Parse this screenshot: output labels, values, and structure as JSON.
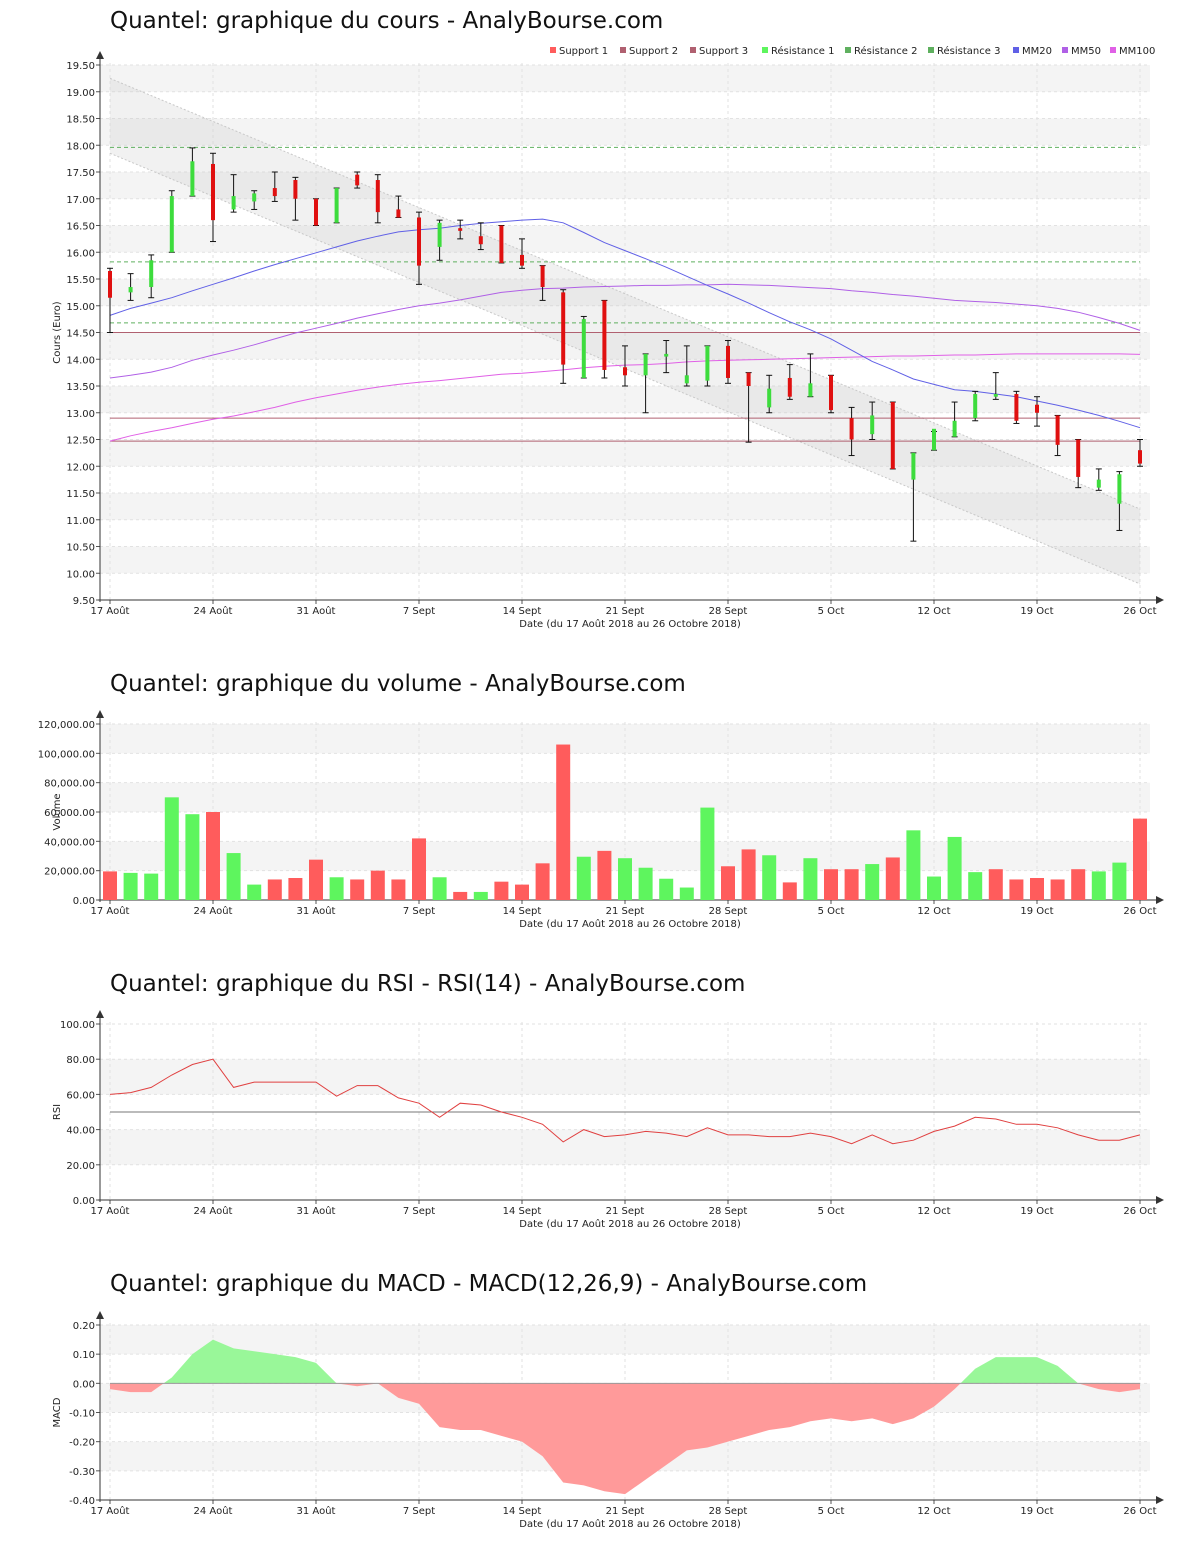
{
  "colors": {
    "up": "#5ef55e",
    "down": "#ff5c5c",
    "candle_up": "#3ddc3d",
    "candle_down": "#e01010",
    "mm20": "#6060e6",
    "mm50": "#b060e6",
    "mm100": "#e060e6",
    "support": "#b06070",
    "resistance": "#5fb05f",
    "rsi": "#e04040",
    "macd_pos": "#99f799",
    "macd_neg": "#ff9a9a"
  },
  "date_ticks": [
    "17 Août",
    "24 Août",
    "31 Août",
    "7 Sept",
    "14 Sept",
    "21 Sept",
    "28 Sept",
    "5 Oct",
    "12 Oct",
    "19 Oct",
    "26 Oct"
  ],
  "xlabel": "Date (du 17 Août 2018 au 26 Octobre 2018)",
  "chart_data": [
    {
      "type": "candlestick",
      "title": "Quantel: graphique du cours - AnalyBourse.com",
      "ylabel": "Cours (Euro)",
      "ylim": [
        9.5,
        19.5
      ],
      "yticks": [
        "9.50",
        "10.00",
        "10.50",
        "11.00",
        "11.50",
        "12.00",
        "12.50",
        "13.00",
        "13.50",
        "14.00",
        "14.50",
        "15.00",
        "15.50",
        "16.00",
        "16.50",
        "17.00",
        "17.50",
        "18.00",
        "18.50",
        "19.00",
        "19.50"
      ],
      "legend": [
        "Support 1",
        "Support 2",
        "Support 3",
        "Résistance 1",
        "Résistance 2",
        "Résistance 3",
        "MM20",
        "MM50",
        "MM100"
      ],
      "legend_position": "top-right",
      "supports": [
        14.5,
        12.9,
        12.47
      ],
      "resistances": [
        14.68,
        15.82,
        17.96
      ],
      "channel": {
        "upper": [
          19.25,
          11.2
        ],
        "lower": [
          17.85,
          9.8
        ]
      },
      "ohlc": [
        [
          15.65,
          15.7,
          14.5,
          15.15
        ],
        [
          15.25,
          15.6,
          15.1,
          15.35
        ],
        [
          15.35,
          15.95,
          15.15,
          15.85
        ],
        [
          16.0,
          17.15,
          16.0,
          17.05
        ],
        [
          17.05,
          17.95,
          17.05,
          17.7
        ],
        [
          17.65,
          17.85,
          16.2,
          16.6
        ],
        [
          16.8,
          17.45,
          16.75,
          17.05
        ],
        [
          16.95,
          17.15,
          16.8,
          17.1
        ],
        [
          17.2,
          17.5,
          16.95,
          17.05
        ],
        [
          17.35,
          17.4,
          16.6,
          17.0
        ],
        [
          17.0,
          17.0,
          16.5,
          16.5
        ],
        [
          16.55,
          17.2,
          16.55,
          17.2
        ],
        [
          17.45,
          17.5,
          17.2,
          17.25
        ],
        [
          17.35,
          17.45,
          16.55,
          16.75
        ],
        [
          16.8,
          17.05,
          16.65,
          16.65
        ],
        [
          16.65,
          16.75,
          15.4,
          15.75
        ],
        [
          16.1,
          16.6,
          15.85,
          16.55
        ],
        [
          16.45,
          16.6,
          16.25,
          16.4
        ],
        [
          16.3,
          16.55,
          16.05,
          16.15
        ],
        [
          16.5,
          16.5,
          15.8,
          15.8
        ],
        [
          15.95,
          16.25,
          15.7,
          15.75
        ],
        [
          15.75,
          15.75,
          15.1,
          15.35
        ],
        [
          15.25,
          15.3,
          13.55,
          13.9
        ],
        [
          13.65,
          14.8,
          13.65,
          14.75
        ],
        [
          15.1,
          15.1,
          13.65,
          13.8
        ],
        [
          13.85,
          14.25,
          13.5,
          13.7
        ],
        [
          13.7,
          14.1,
          13.0,
          14.1
        ],
        [
          14.05,
          14.35,
          13.75,
          14.1
        ],
        [
          13.55,
          14.25,
          13.5,
          13.7
        ],
        [
          13.6,
          14.25,
          13.5,
          14.25
        ],
        [
          14.25,
          14.35,
          13.55,
          13.65
        ],
        [
          13.75,
          13.75,
          12.45,
          13.5
        ],
        [
          13.1,
          13.7,
          13.0,
          13.45
        ],
        [
          13.65,
          13.9,
          13.25,
          13.3
        ],
        [
          13.3,
          14.1,
          13.3,
          13.55
        ],
        [
          13.7,
          13.7,
          13.0,
          13.05
        ],
        [
          12.9,
          13.1,
          12.2,
          12.5
        ],
        [
          12.6,
          13.2,
          12.5,
          12.95
        ],
        [
          13.2,
          13.2,
          11.95,
          11.95
        ],
        [
          11.75,
          12.25,
          10.6,
          12.25
        ],
        [
          12.3,
          12.65,
          12.3,
          12.7
        ],
        [
          12.55,
          13.2,
          12.55,
          12.85
        ],
        [
          12.9,
          13.4,
          12.85,
          13.35
        ],
        [
          13.3,
          13.75,
          13.25,
          13.35
        ],
        [
          13.35,
          13.4,
          12.8,
          12.85
        ],
        [
          13.15,
          13.3,
          12.75,
          13.0
        ],
        [
          12.95,
          12.95,
          12.2,
          12.4
        ],
        [
          12.5,
          12.5,
          11.6,
          11.8
        ],
        [
          11.6,
          11.95,
          11.55,
          11.75
        ],
        [
          11.3,
          11.9,
          10.8,
          11.85
        ],
        [
          12.3,
          12.5,
          12.0,
          12.05
        ]
      ],
      "mm20": [
        14.82,
        14.95,
        15.05,
        15.15,
        15.28,
        15.4,
        15.52,
        15.65,
        15.77,
        15.88,
        15.99,
        16.1,
        16.21,
        16.3,
        16.38,
        16.42,
        16.45,
        16.5,
        16.54,
        16.57,
        16.6,
        16.62,
        16.55,
        16.37,
        16.18,
        16.03,
        15.88,
        15.72,
        15.55,
        15.38,
        15.22,
        15.05,
        14.87,
        14.7,
        14.55,
        14.38,
        14.17,
        13.96,
        13.8,
        13.63,
        13.53,
        13.43,
        13.4,
        13.35,
        13.3,
        13.22,
        13.14,
        13.05,
        12.95,
        12.84,
        12.72
      ],
      "mm50": [
        13.65,
        13.7,
        13.76,
        13.85,
        13.98,
        14.08,
        14.17,
        14.27,
        14.38,
        14.49,
        14.58,
        14.67,
        14.77,
        14.85,
        14.93,
        15.0,
        15.05,
        15.11,
        15.18,
        15.25,
        15.29,
        15.32,
        15.33,
        15.35,
        15.36,
        15.37,
        15.38,
        15.38,
        15.39,
        15.39,
        15.4,
        15.39,
        15.38,
        15.36,
        15.34,
        15.32,
        15.28,
        15.25,
        15.21,
        15.18,
        15.14,
        15.1,
        15.08,
        15.06,
        15.03,
        15.0,
        14.95,
        14.88,
        14.78,
        14.67,
        14.54
      ],
      "mm100": [
        12.47,
        12.57,
        12.65,
        12.72,
        12.8,
        12.88,
        12.94,
        13.02,
        13.1,
        13.2,
        13.28,
        13.35,
        13.42,
        13.48,
        13.53,
        13.57,
        13.6,
        13.64,
        13.68,
        13.72,
        13.74,
        13.77,
        13.8,
        13.84,
        13.87,
        13.89,
        13.9,
        13.92,
        13.95,
        13.97,
        13.98,
        13.99,
        14.0,
        14.01,
        14.02,
        14.03,
        14.04,
        14.05,
        14.06,
        14.06,
        14.07,
        14.08,
        14.08,
        14.09,
        14.1,
        14.1,
        14.1,
        14.1,
        14.1,
        14.1,
        14.09
      ]
    },
    {
      "type": "bar",
      "title": "Quantel: graphique du volume - AnalyBourse.com",
      "ylabel": "Volume",
      "ylim": [
        0,
        120000
      ],
      "yticks": [
        "0.00",
        "20,000.00",
        "40,000.00",
        "60,000.00",
        "80,000.00",
        "100,000.00",
        "120,000.00"
      ],
      "values": [
        19500,
        18500,
        18000,
        70000,
        58500,
        60000,
        32000,
        10500,
        14000,
        15000,
        27500,
        15500,
        14000,
        20000,
        14000,
        42000,
        15500,
        5500,
        5500,
        12500,
        10500,
        25000,
        106000,
        29500,
        33500,
        28500,
        22000,
        14500,
        8500,
        63000,
        23000,
        34500,
        30500,
        12000,
        28500,
        21000,
        21000,
        24500,
        29000,
        47500,
        16000,
        43000,
        19000,
        21000,
        14000,
        15000,
        14000,
        21000,
        19500,
        25500,
        55500
      ],
      "up": [
        0,
        1,
        1,
        1,
        1,
        0,
        1,
        1,
        0,
        0,
        0,
        1,
        0,
        0,
        0,
        0,
        1,
        0,
        1,
        0,
        0,
        0,
        0,
        1,
        0,
        1,
        1,
        1,
        1,
        1,
        0,
        0,
        1,
        0,
        1,
        0,
        0,
        1,
        0,
        1,
        1,
        1,
        1,
        0,
        0,
        0,
        0,
        0,
        1,
        1,
        0
      ]
    },
    {
      "type": "line",
      "title": "Quantel: graphique du RSI - RSI(14) - AnalyBourse.com",
      "ylabel": "RSI",
      "ylim": [
        0,
        100
      ],
      "yticks": [
        "0.00",
        "20.00",
        "40.00",
        "60.00",
        "80.00",
        "100.00"
      ],
      "reference": 50,
      "values": [
        60,
        61,
        64,
        71,
        77,
        80,
        64,
        67,
        67,
        67,
        67,
        59,
        65,
        65,
        58,
        55,
        47,
        55,
        54,
        50,
        47,
        43,
        33,
        40,
        36,
        37,
        39,
        38,
        36,
        41,
        37,
        37,
        36,
        36,
        38,
        36,
        32,
        37,
        32,
        34,
        39,
        42,
        47,
        46,
        43,
        43,
        41,
        37,
        34,
        34,
        37
      ]
    },
    {
      "type": "area",
      "title": "Quantel: graphique du MACD - MACD(12,26,9) - AnalyBourse.com",
      "ylabel": "MACD",
      "ylim": [
        -0.4,
        0.2
      ],
      "yticks": [
        "-0.40",
        "-0.30",
        "-0.20",
        "-0.10",
        "0.00",
        "0.10",
        "0.20"
      ],
      "values": [
        -0.02,
        -0.03,
        -0.03,
        0.02,
        0.1,
        0.15,
        0.12,
        0.11,
        0.1,
        0.09,
        0.07,
        0.0,
        -0.01,
        0.0,
        -0.05,
        -0.07,
        -0.15,
        -0.16,
        -0.16,
        -0.18,
        -0.2,
        -0.25,
        -0.34,
        -0.35,
        -0.37,
        -0.38,
        -0.33,
        -0.28,
        -0.23,
        -0.22,
        -0.2,
        -0.18,
        -0.16,
        -0.15,
        -0.13,
        -0.12,
        -0.13,
        -0.12,
        -0.14,
        -0.12,
        -0.08,
        -0.02,
        0.05,
        0.09,
        0.09,
        0.09,
        0.06,
        0.0,
        -0.02,
        -0.03,
        -0.02
      ]
    }
  ]
}
